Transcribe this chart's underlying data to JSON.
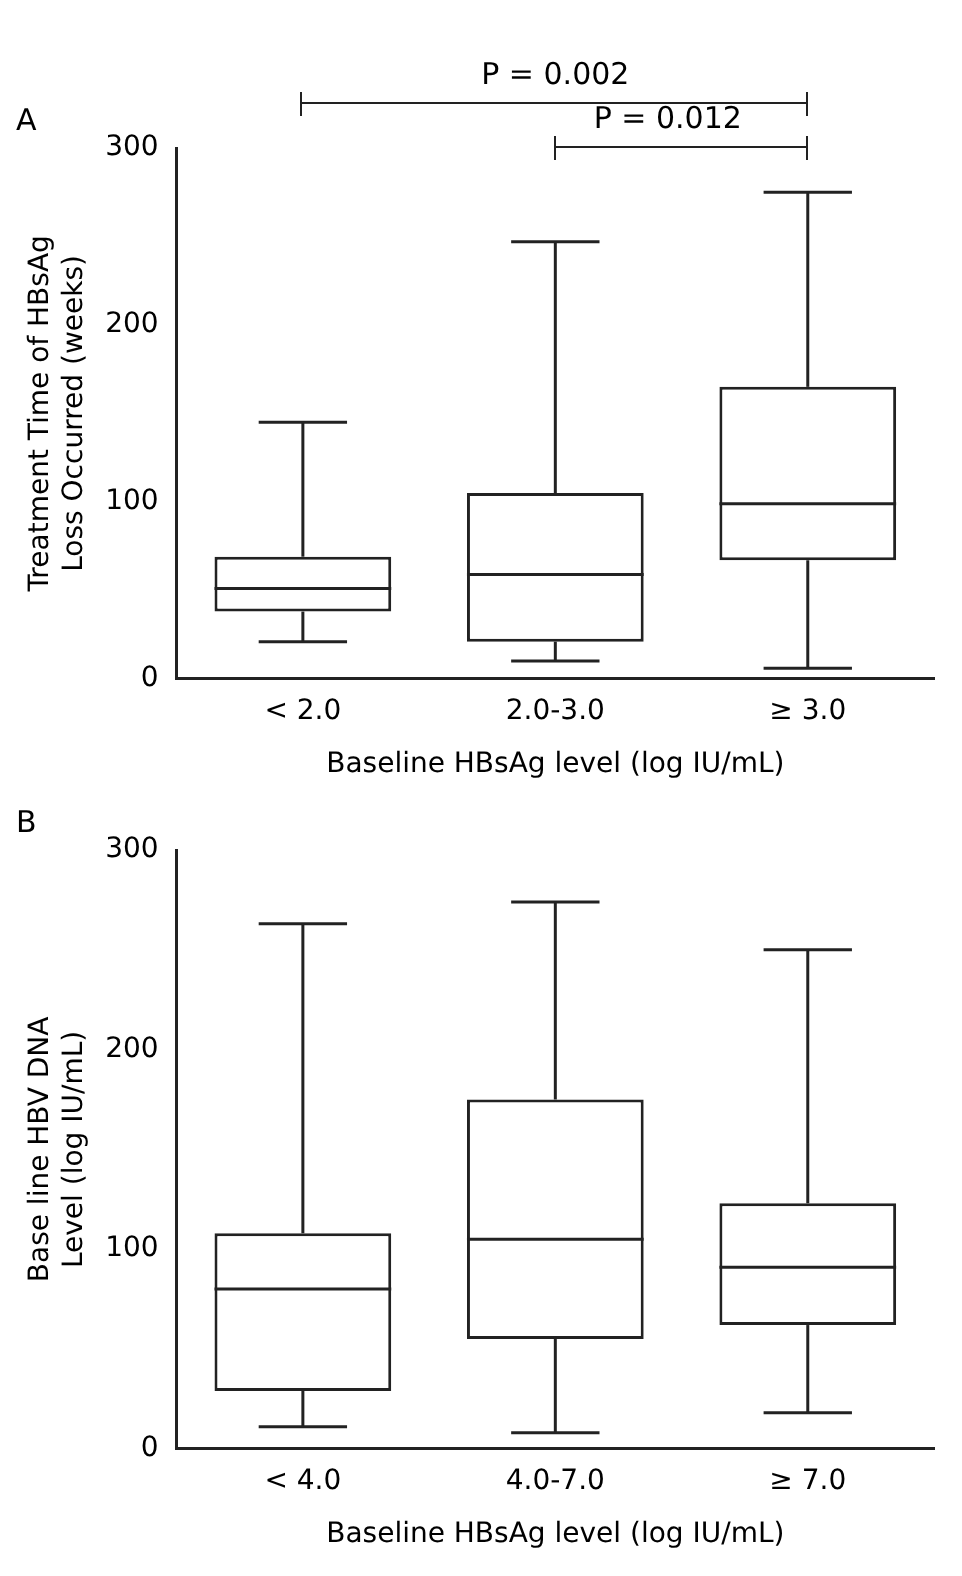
{
  "chart_data": [
    {
      "type": "box",
      "title": "A",
      "xlabel": "Baseline HBsAg level (log IU/mL)",
      "ylabel": "Treatment Time of HBsAg Loss Occurred (weeks)",
      "categories": [
        "< 2.0",
        "2.0-3.0",
        "≥ 3.0"
      ],
      "boxes": [
        {
          "low": 21,
          "q1": 38,
          "median": 51,
          "q3": 69,
          "high": 145
        },
        {
          "low": 10,
          "q1": 21,
          "median": 59,
          "q3": 105,
          "high": 247
        },
        {
          "low": 6,
          "q1": 67,
          "median": 99,
          "q3": 165,
          "high": 275
        }
      ],
      "ylim": [
        0,
        300
      ],
      "yticks": [
        0,
        100,
        200,
        300
      ],
      "grid": false,
      "legend": false,
      "annotations": [
        "P = 0.002",
        "P = 0.012"
      ]
    },
    {
      "type": "box",
      "title": "B",
      "xlabel": "Baseline HBsAg level (log IU/mL)",
      "ylabel": "Base line HBV DNA Level (log IU/mL)",
      "categories": [
        "< 4.0",
        "4.0-7.0",
        "≥ 7.0"
      ],
      "boxes": [
        {
          "low": 11,
          "q1": 29,
          "median": 80,
          "q3": 108,
          "high": 263
        },
        {
          "low": 8,
          "q1": 55,
          "median": 105,
          "q3": 175,
          "high": 274
        },
        {
          "low": 18,
          "q1": 62,
          "median": 91,
          "q3": 123,
          "high": 250
        }
      ],
      "ylim": [
        0,
        300
      ],
      "yticks": [
        0,
        100,
        200,
        300
      ],
      "grid": false,
      "legend": false
    }
  ]
}
